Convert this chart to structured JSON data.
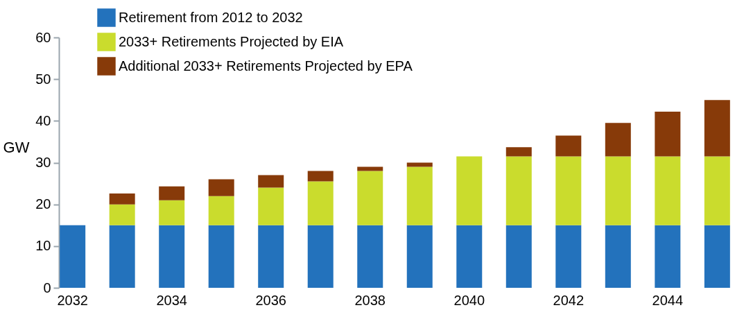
{
  "chart_data": {
    "type": "bar",
    "stacked": true,
    "ylabel": "GW",
    "categories": [
      "2032",
      null,
      "2034",
      null,
      "2036",
      null,
      "2038",
      null,
      "2040",
      null,
      "2042",
      null,
      "2044",
      null
    ],
    "series": [
      {
        "name": "Retirement from 2012 to 2032",
        "color": "#2372bc",
        "values": [
          15,
          15,
          15,
          15,
          15,
          15,
          15,
          15,
          15,
          15,
          15,
          15,
          15,
          15
        ]
      },
      {
        "name": "2033+ Retirements Projected by EIA",
        "color": "#cadc2d",
        "values": [
          0,
          5,
          6,
          7,
          9,
          10.5,
          13,
          14,
          16.5,
          16.5,
          16.5,
          16.5,
          16.5,
          16.5
        ]
      },
      {
        "name": "Additional 2033+ Retirements Projected by EPA",
        "color": "#873a09",
        "values": [
          0,
          2.6,
          3.3,
          4,
          3,
          2.5,
          1,
          1,
          0,
          2.2,
          5,
          8,
          10.7,
          13.5
        ]
      }
    ],
    "ylim": [
      0,
      60
    ],
    "yticks": [
      0,
      10,
      20,
      30,
      40,
      50,
      60
    ],
    "grid": false,
    "legend": "top left"
  }
}
